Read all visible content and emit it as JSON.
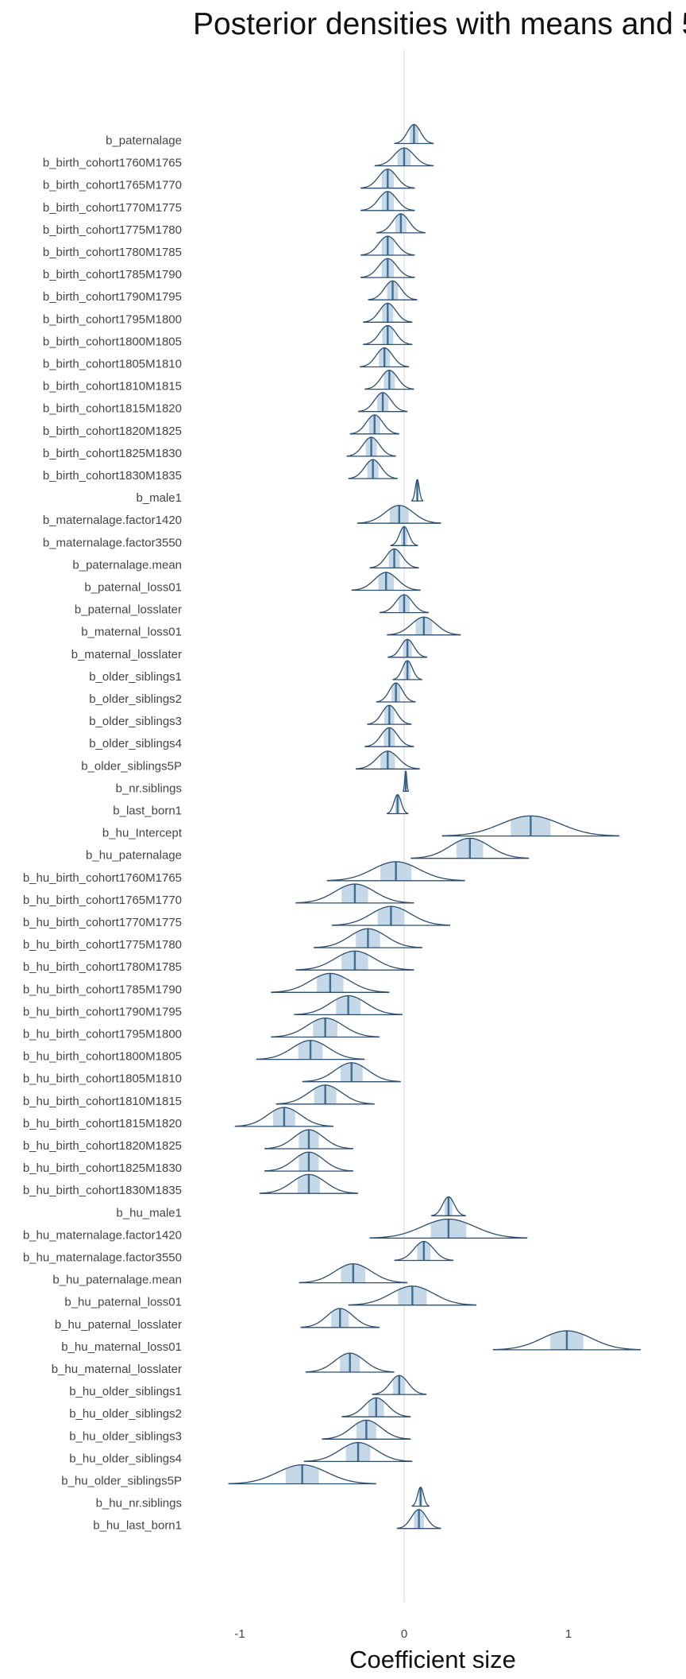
{
  "chart_data": {
    "type": "density-ridges",
    "title": "Posterior densities with means and 5",
    "xlabel": "Coefficient size",
    "xlim": [
      -1.05,
      1.45
    ],
    "x_ticks": [
      {
        "value": -1,
        "label": "-1"
      },
      {
        "value": 0,
        "label": "0"
      },
      {
        "value": 1,
        "label": "1"
      }
    ],
    "reference_line": 0,
    "grid": false,
    "colors": {
      "outline": "#2e4e6e",
      "fill": "#c5d8e8",
      "mean_line": "#3f6e92",
      "zero_line": "#dddddd"
    },
    "parameters": [
      {
        "name": "b_paternalage",
        "mean": 0.06,
        "sd": 0.04,
        "h": 0.85
      },
      {
        "name": "b_birth_cohort1760M1765",
        "mean": 0.0,
        "sd": 0.06,
        "h": 0.8
      },
      {
        "name": "b_birth_cohort1765M1770",
        "mean": -0.1,
        "sd": 0.055,
        "h": 0.85
      },
      {
        "name": "b_birth_cohort1770M1775",
        "mean": -0.1,
        "sd": 0.055,
        "h": 0.85
      },
      {
        "name": "b_birth_cohort1775M1780",
        "mean": -0.02,
        "sd": 0.05,
        "h": 0.85
      },
      {
        "name": "b_birth_cohort1780M1785",
        "mean": -0.1,
        "sd": 0.055,
        "h": 0.85
      },
      {
        "name": "b_birth_cohort1785M1790",
        "mean": -0.1,
        "sd": 0.055,
        "h": 0.85
      },
      {
        "name": "b_birth_cohort1790M1795",
        "mean": -0.07,
        "sd": 0.05,
        "h": 0.85
      },
      {
        "name": "b_birth_cohort1795M1800",
        "mean": -0.1,
        "sd": 0.05,
        "h": 0.85
      },
      {
        "name": "b_birth_cohort1800M1805",
        "mean": -0.1,
        "sd": 0.05,
        "h": 0.85
      },
      {
        "name": "b_birth_cohort1805M1810",
        "mean": -0.12,
        "sd": 0.05,
        "h": 0.85
      },
      {
        "name": "b_birth_cohort1810M1815",
        "mean": -0.09,
        "sd": 0.05,
        "h": 0.85
      },
      {
        "name": "b_birth_cohort1815M1820",
        "mean": -0.13,
        "sd": 0.05,
        "h": 0.85
      },
      {
        "name": "b_birth_cohort1820M1825",
        "mean": -0.18,
        "sd": 0.05,
        "h": 0.85
      },
      {
        "name": "b_birth_cohort1825M1830",
        "mean": -0.2,
        "sd": 0.05,
        "h": 0.85
      },
      {
        "name": "b_birth_cohort1830M1835",
        "mean": -0.19,
        "sd": 0.05,
        "h": 0.85
      },
      {
        "name": "b_male1",
        "mean": 0.08,
        "sd": 0.012,
        "h": 0.95
      },
      {
        "name": "b_maternalage.factor1420",
        "mean": -0.03,
        "sd": 0.085,
        "h": 0.8
      },
      {
        "name": "b_maternalage.factor3550",
        "mean": 0.0,
        "sd": 0.028,
        "h": 0.85
      },
      {
        "name": "b_paternalage.mean",
        "mean": -0.06,
        "sd": 0.05,
        "h": 0.85
      },
      {
        "name": "b_paternal_loss01",
        "mean": -0.11,
        "sd": 0.07,
        "h": 0.8
      },
      {
        "name": "b_paternal_losslater",
        "mean": 0.0,
        "sd": 0.05,
        "h": 0.8
      },
      {
        "name": "b_maternal_loss01",
        "mean": 0.12,
        "sd": 0.075,
        "h": 0.8
      },
      {
        "name": "b_maternal_losslater",
        "mean": 0.02,
        "sd": 0.04,
        "h": 0.8
      },
      {
        "name": "b_older_siblings1",
        "mean": 0.02,
        "sd": 0.03,
        "h": 0.85
      },
      {
        "name": "b_older_siblings2",
        "mean": -0.05,
        "sd": 0.04,
        "h": 0.85
      },
      {
        "name": "b_older_siblings3",
        "mean": -0.09,
        "sd": 0.045,
        "h": 0.85
      },
      {
        "name": "b_older_siblings4",
        "mean": -0.09,
        "sd": 0.05,
        "h": 0.85
      },
      {
        "name": "b_older_siblings5P",
        "mean": -0.1,
        "sd": 0.065,
        "h": 0.8
      },
      {
        "name": "b_nr.siblings",
        "mean": 0.01,
        "sd": 0.006,
        "h": 0.9
      },
      {
        "name": "b_last_born1",
        "mean": -0.04,
        "sd": 0.022,
        "h": 0.85
      },
      {
        "name": "b_hu_Intercept",
        "mean": 0.77,
        "sd": 0.18,
        "h": 0.9
      },
      {
        "name": "b_hu_paternalage",
        "mean": 0.4,
        "sd": 0.12,
        "h": 0.9
      },
      {
        "name": "b_hu_birth_cohort1760M1765",
        "mean": -0.05,
        "sd": 0.14,
        "h": 0.85
      },
      {
        "name": "b_hu_birth_cohort1765M1770",
        "mean": -0.3,
        "sd": 0.12,
        "h": 0.85
      },
      {
        "name": "b_hu_birth_cohort1770M1775",
        "mean": -0.08,
        "sd": 0.12,
        "h": 0.85
      },
      {
        "name": "b_hu_birth_cohort1775M1780",
        "mean": -0.22,
        "sd": 0.11,
        "h": 0.85
      },
      {
        "name": "b_hu_birth_cohort1780M1785",
        "mean": -0.3,
        "sd": 0.12,
        "h": 0.85
      },
      {
        "name": "b_hu_birth_cohort1785M1790",
        "mean": -0.45,
        "sd": 0.12,
        "h": 0.85
      },
      {
        "name": "b_hu_birth_cohort1790M1795",
        "mean": -0.34,
        "sd": 0.11,
        "h": 0.85
      },
      {
        "name": "b_hu_birth_cohort1795M1800",
        "mean": -0.48,
        "sd": 0.11,
        "h": 0.85
      },
      {
        "name": "b_hu_birth_cohort1800M1805",
        "mean": -0.57,
        "sd": 0.11,
        "h": 0.85
      },
      {
        "name": "b_hu_birth_cohort1805M1810",
        "mean": -0.32,
        "sd": 0.1,
        "h": 0.85
      },
      {
        "name": "b_hu_birth_cohort1810M1815",
        "mean": -0.48,
        "sd": 0.1,
        "h": 0.85
      },
      {
        "name": "b_hu_birth_cohort1815M1820",
        "mean": -0.73,
        "sd": 0.1,
        "h": 0.85
      },
      {
        "name": "b_hu_birth_cohort1820M1825",
        "mean": -0.58,
        "sd": 0.09,
        "h": 0.85
      },
      {
        "name": "b_hu_birth_cohort1825M1830",
        "mean": -0.58,
        "sd": 0.09,
        "h": 0.85
      },
      {
        "name": "b_hu_birth_cohort1830M1835",
        "mean": -0.58,
        "sd": 0.1,
        "h": 0.85
      },
      {
        "name": "b_hu_male1",
        "mean": 0.27,
        "sd": 0.035,
        "h": 0.85
      },
      {
        "name": "b_hu_maternalage.factor1420",
        "mean": 0.27,
        "sd": 0.16,
        "h": 0.85
      },
      {
        "name": "b_hu_maternalage.factor3550",
        "mean": 0.12,
        "sd": 0.06,
        "h": 0.85
      },
      {
        "name": "b_hu_paternalage.mean",
        "mean": -0.31,
        "sd": 0.11,
        "h": 0.85
      },
      {
        "name": "b_hu_paternal_loss01",
        "mean": 0.05,
        "sd": 0.13,
        "h": 0.85
      },
      {
        "name": "b_hu_paternal_losslater",
        "mean": -0.39,
        "sd": 0.08,
        "h": 0.85
      },
      {
        "name": "b_hu_maternal_loss01",
        "mean": 0.99,
        "sd": 0.15,
        "h": 0.85
      },
      {
        "name": "b_hu_maternal_losslater",
        "mean": -0.33,
        "sd": 0.09,
        "h": 0.85
      },
      {
        "name": "b_hu_older_siblings1",
        "mean": -0.03,
        "sd": 0.055,
        "h": 0.85
      },
      {
        "name": "b_hu_older_siblings2",
        "mean": -0.17,
        "sd": 0.07,
        "h": 0.85
      },
      {
        "name": "b_hu_older_siblings3",
        "mean": -0.23,
        "sd": 0.09,
        "h": 0.85
      },
      {
        "name": "b_hu_older_siblings4",
        "mean": -0.28,
        "sd": 0.11,
        "h": 0.85
      },
      {
        "name": "b_hu_older_siblings5P",
        "mean": -0.62,
        "sd": 0.15,
        "h": 0.85
      },
      {
        "name": "b_hu_nr.siblings",
        "mean": 0.1,
        "sd": 0.018,
        "h": 0.85
      },
      {
        "name": "b_hu_last_born1",
        "mean": 0.09,
        "sd": 0.045,
        "h": 0.85
      }
    ]
  }
}
